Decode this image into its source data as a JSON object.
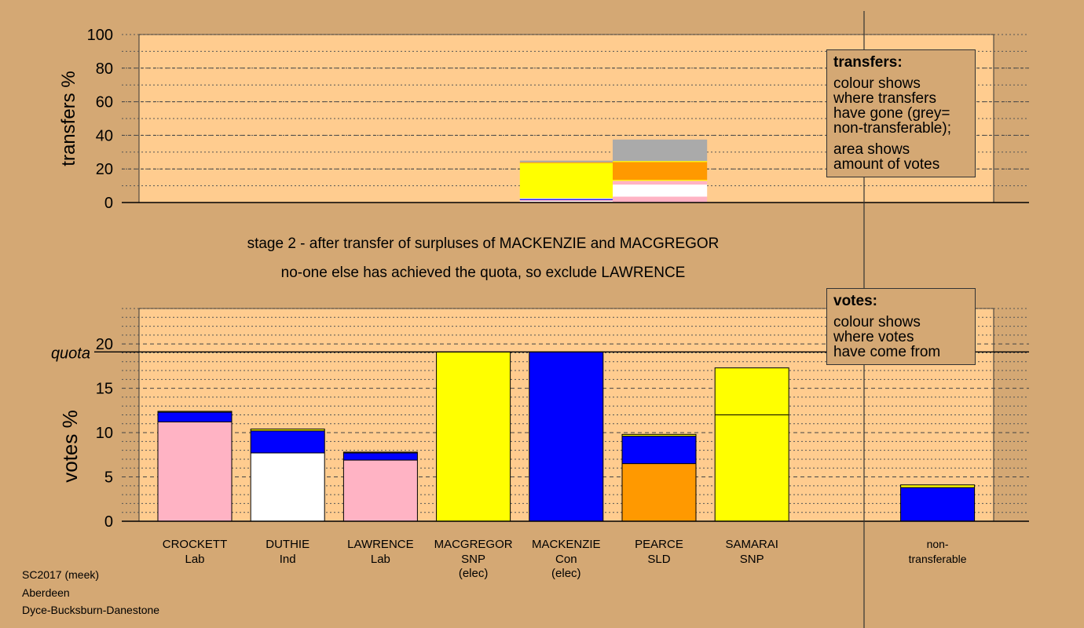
{
  "stage_lines": [
    "stage 2 - after transfer of surpluses of MACKENZIE and MACGREGOR",
    "no-one else has achieved the quota, so exclude LAWRENCE"
  ],
  "legends": {
    "transfers": {
      "title": "transfers:",
      "lines_a": [
        "colour shows",
        "where transfers",
        "have gone (grey=",
        "non-transferable);"
      ],
      "lines_b": [
        "area shows",
        "amount of votes"
      ]
    },
    "votes": {
      "title": "votes:",
      "lines": [
        "colour shows",
        "where votes",
        "have come from"
      ]
    }
  },
  "footer": [
    "SC2017 (meek)",
    "Aberdeen",
    "Dyce-Bucksburn-Danestone"
  ],
  "colors": {
    "background": "#d4a874",
    "plot_bg": "#ffcc8f",
    "Lab": "#ffb3c4",
    "Ind": "#ffffff",
    "SNP": "#ffff00",
    "Con": "#0000ff",
    "SLD": "#ff9900",
    "nontransferable": "#aaaaaa"
  },
  "chart_data": [
    {
      "type": "bar",
      "name": "transfers",
      "ylabel": "transfers %",
      "ylim": [
        0,
        100
      ],
      "yticks": [
        0,
        20,
        40,
        60,
        80,
        100
      ],
      "grid": true,
      "legend_position": "top-right",
      "columns": [
        {
          "from": "MACGREGOR",
          "position": 4,
          "segments": [
            {
              "party": "Lab",
              "value": 0.5
            },
            {
              "party": "Ind",
              "value": 0.5
            },
            {
              "party": "Lab",
              "value": 0.5
            },
            {
              "party": "Con",
              "value": 0.6
            },
            {
              "party": "Ind",
              "value": 0.5
            },
            {
              "party": "SNP",
              "value": 20.9
            },
            {
              "party": "SLD",
              "value": 0.5
            },
            {
              "party": "nontransferable",
              "value": 0.9
            }
          ]
        },
        {
          "from": "MACKENZIE",
          "position": 5,
          "segments": [
            {
              "party": "Lab",
              "value": 3.5
            },
            {
              "party": "Ind",
              "value": 7.2
            },
            {
              "party": "Lab",
              "value": 2.2
            },
            {
              "party": "SNP",
              "value": 0.6
            },
            {
              "party": "SLD",
              "value": 10.6
            },
            {
              "party": "SNP",
              "value": 0.6
            },
            {
              "party": "nontransferable",
              "value": 12.8
            }
          ]
        }
      ]
    },
    {
      "type": "bar",
      "name": "votes",
      "ylabel": "votes %",
      "ylim": [
        0,
        24
      ],
      "yticks": [
        0,
        5,
        10,
        15,
        20
      ],
      "quota": 19.1,
      "quota_label": "quota",
      "grid": true,
      "legend_position": "top-right",
      "categories": [
        {
          "name": "CROCKETT",
          "party": "Lab"
        },
        {
          "name": "DUTHIE",
          "party": "Ind"
        },
        {
          "name": "LAWRENCE",
          "party": "Lab"
        },
        {
          "name": "MACGREGOR",
          "party": "SNP",
          "note": "(elec)"
        },
        {
          "name": "MACKENZIE",
          "party": "Con",
          "note": "(elec)"
        },
        {
          "name": "PEARCE",
          "party": "SLD"
        },
        {
          "name": "SAMARAI",
          "party": "SNP"
        },
        {
          "name": "non-",
          "party": "transferable"
        }
      ],
      "bars": [
        {
          "position": 0,
          "segments": [
            {
              "color": "Lab",
              "value": 11.2
            },
            {
              "color": "Con",
              "value": 1.1
            },
            {
              "color": "SNP",
              "value": 0.1
            }
          ]
        },
        {
          "position": 1,
          "segments": [
            {
              "color": "Ind",
              "value": 7.7
            },
            {
              "color": "Con",
              "value": 2.5
            },
            {
              "color": "SNP",
              "value": 0.2
            }
          ]
        },
        {
          "position": 2,
          "segments": [
            {
              "color": "Lab",
              "value": 6.9
            },
            {
              "color": "Con",
              "value": 0.8
            },
            {
              "color": "SNP",
              "value": 0.1
            }
          ]
        },
        {
          "position": 3,
          "segments": [
            {
              "color": "SNP",
              "value": 19.1
            }
          ]
        },
        {
          "position": 4,
          "segments": [
            {
              "color": "Con",
              "value": 19.1
            }
          ]
        },
        {
          "position": 5,
          "segments": [
            {
              "color": "SLD",
              "value": 6.5
            },
            {
              "color": "Con",
              "value": 3.1
            },
            {
              "color": "SNP",
              "value": 0.2
            }
          ]
        },
        {
          "position": 6,
          "segments": [
            {
              "color": "SNP",
              "value": 12.0
            },
            {
              "color": "SNP",
              "value": 5.3
            }
          ]
        },
        {
          "position": 8,
          "segments": [
            {
              "color": "Con",
              "value": 3.8
            },
            {
              "color": "SNP",
              "value": 0.3
            }
          ]
        }
      ]
    }
  ]
}
